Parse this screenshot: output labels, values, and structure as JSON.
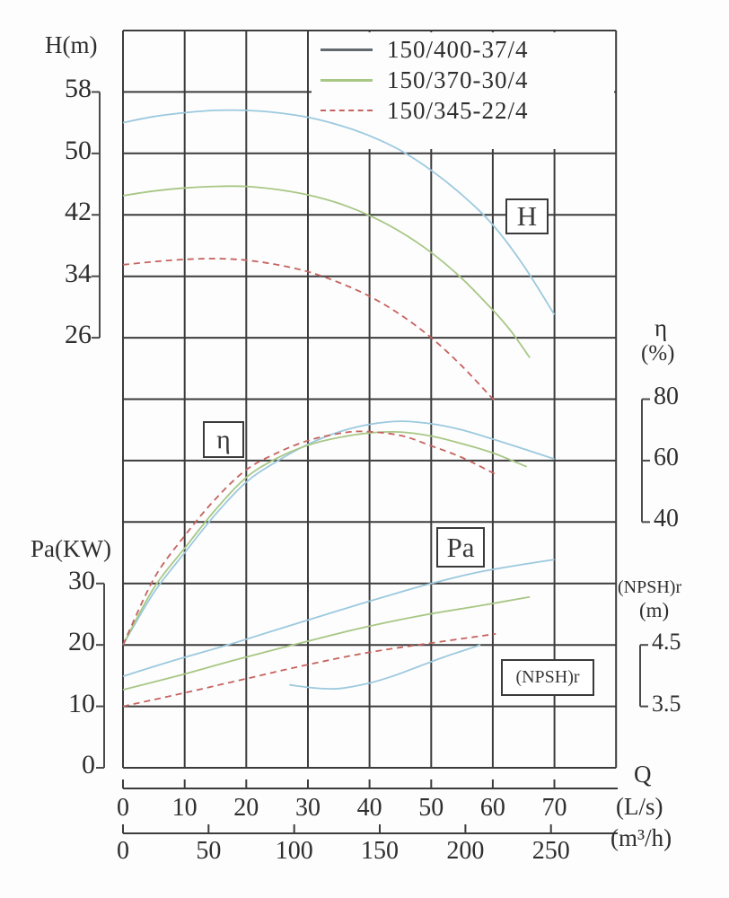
{
  "chart_data": {
    "type": "line",
    "description": "Pump performance curves: head H, efficiency, shaft power Pa and (NPSH)r versus flow Q",
    "x": {
      "name": "Q",
      "primary_unit": "(L/s)",
      "primary_ticks": [
        0,
        10,
        20,
        30,
        40,
        50,
        60,
        70
      ],
      "primary_range": [
        0,
        80
      ],
      "secondary_unit": "(m³/h)",
      "secondary_ticks": [
        0,
        50,
        100,
        150,
        200,
        250
      ]
    },
    "y_axes": {
      "H": {
        "label": "H(m)",
        "ticks": [
          58,
          50,
          42,
          34,
          26
        ]
      },
      "eta": {
        "label": "η",
        "unit": "(%)",
        "ticks": [
          80,
          60,
          40
        ]
      },
      "Pa": {
        "label": "Pa(KW)",
        "ticks": [
          30,
          20,
          10,
          0
        ]
      },
      "NPSH": {
        "label": "(NPSH)r",
        "unit": "(m)",
        "ticks": [
          4.5,
          3.5
        ]
      }
    },
    "curve_boxes": {
      "H": "H",
      "eta": "η",
      "Pa": "Pa",
      "NPSH": "(NPSH)r"
    },
    "legend": [
      {
        "label": "150/400-37/4",
        "color": "#62696f",
        "style": "solid"
      },
      {
        "label": "150/370-30/4",
        "color": "#a8c785",
        "style": "solid"
      },
      {
        "label": "150/345-22/4",
        "color": "#c5635f",
        "style": "dashed"
      }
    ],
    "grid_color": "#3c3c3c",
    "models": [
      {
        "name": "150/400-37/4",
        "color": "#9cc9de",
        "style": "solid",
        "H": [
          [
            0,
            54
          ],
          [
            5,
            54.8
          ],
          [
            10,
            55.3
          ],
          [
            15,
            55.6
          ],
          [
            20,
            55.6
          ],
          [
            25,
            55.3
          ],
          [
            30,
            54.7
          ],
          [
            35,
            53.7
          ],
          [
            40,
            52.3
          ],
          [
            45,
            50.4
          ],
          [
            50,
            47.8
          ],
          [
            55,
            44.6
          ],
          [
            60,
            40.7
          ],
          [
            65,
            35.4
          ],
          [
            70,
            29
          ]
        ],
        "eta": [
          [
            0,
            0
          ],
          [
            5,
            17
          ],
          [
            10,
            30
          ],
          [
            15,
            42.5
          ],
          [
            20,
            53
          ],
          [
            25,
            59.8
          ],
          [
            30,
            65.3
          ],
          [
            35,
            69.3
          ],
          [
            40,
            71.8
          ],
          [
            45,
            72.8
          ],
          [
            50,
            72
          ],
          [
            55,
            70
          ],
          [
            60,
            67
          ],
          [
            65,
            63.8
          ],
          [
            70,
            60.5
          ]
        ],
        "Pa": [
          [
            0,
            14.9
          ],
          [
            8,
            17.4
          ],
          [
            17,
            20
          ],
          [
            25,
            22.5
          ],
          [
            35,
            25.6
          ],
          [
            44,
            28.3
          ],
          [
            50,
            30
          ],
          [
            57,
            31.7
          ],
          [
            63,
            32.8
          ],
          [
            70,
            33.9
          ]
        ],
        "NPSH": [
          [
            27,
            3.85
          ],
          [
            31,
            3.8
          ],
          [
            35,
            3.79
          ],
          [
            40,
            3.88
          ],
          [
            44,
            4.0
          ],
          [
            48,
            4.15
          ],
          [
            52,
            4.3
          ],
          [
            55,
            4.4
          ],
          [
            58,
            4.5
          ]
        ]
      },
      {
        "name": "150/370-30/4",
        "color": "#a8c785",
        "style": "solid",
        "H": [
          [
            0,
            44.5
          ],
          [
            5,
            45.1
          ],
          [
            10,
            45.5
          ],
          [
            15,
            45.7
          ],
          [
            20,
            45.7
          ],
          [
            25,
            45.3
          ],
          [
            30,
            44.6
          ],
          [
            35,
            43.5
          ],
          [
            40,
            41.9
          ],
          [
            45,
            39.8
          ],
          [
            50,
            37.1
          ],
          [
            55,
            33.7
          ],
          [
            60,
            29.6
          ],
          [
            63,
            26.8
          ],
          [
            66,
            23.4
          ]
        ],
        "eta": [
          [
            0,
            0
          ],
          [
            5,
            18.5
          ],
          [
            10,
            31.5
          ],
          [
            15,
            44
          ],
          [
            20,
            54.5
          ],
          [
            25,
            60.8
          ],
          [
            30,
            65
          ],
          [
            35,
            67.5
          ],
          [
            40,
            69
          ],
          [
            45,
            69.3
          ],
          [
            50,
            68
          ],
          [
            55,
            65.5
          ],
          [
            60,
            62.5
          ],
          [
            65.5,
            58
          ]
        ],
        "Pa": [
          [
            0,
            12.7
          ],
          [
            9,
            15
          ],
          [
            18,
            17.5
          ],
          [
            28,
            20.1
          ],
          [
            38,
            22.6
          ],
          [
            48,
            24.7
          ],
          [
            58,
            26.4
          ],
          [
            66,
            27.8
          ]
        ]
      },
      {
        "name": "150/345-22/4",
        "color": "#c5635f",
        "style": "dashed",
        "H": [
          [
            0,
            35.5
          ],
          [
            5,
            35.9
          ],
          [
            10,
            36.2
          ],
          [
            15,
            36.3
          ],
          [
            20,
            36.1
          ],
          [
            25,
            35.5
          ],
          [
            30,
            34.6
          ],
          [
            35,
            33.2
          ],
          [
            40,
            31.4
          ],
          [
            45,
            29
          ],
          [
            50,
            26
          ],
          [
            55,
            22.3
          ],
          [
            60.5,
            17.6
          ]
        ],
        "eta": [
          [
            0,
            0
          ],
          [
            5,
            21.5
          ],
          [
            10,
            35.5
          ],
          [
            15,
            47.5
          ],
          [
            20,
            57
          ],
          [
            25,
            62.5
          ],
          [
            30,
            66.5
          ],
          [
            35,
            68.8
          ],
          [
            39,
            69.5
          ],
          [
            45,
            68.2
          ],
          [
            50,
            64.8
          ],
          [
            55,
            61
          ],
          [
            60.5,
            55.5
          ]
        ],
        "Pa": [
          [
            0,
            10
          ],
          [
            10,
            12.2
          ],
          [
            20,
            14.5
          ],
          [
            30,
            16.8
          ],
          [
            40,
            18.8
          ],
          [
            50,
            20.3
          ],
          [
            60.5,
            21.8
          ]
        ]
      }
    ]
  }
}
